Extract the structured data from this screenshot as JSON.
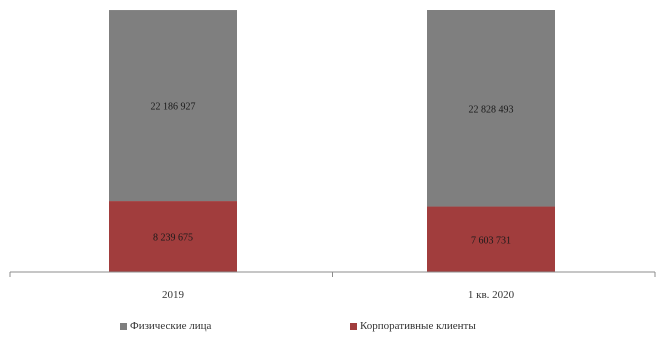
{
  "chart_data": {
    "type": "bar",
    "stacked": true,
    "categories": [
      "2019",
      "1 кв. 2020"
    ],
    "series": [
      {
        "name": "Корпоративные клиенты",
        "values": [
          8239675,
          7603731
        ],
        "labels": [
          "8 239 675",
          "7 603 731"
        ],
        "color": "#a13d3d"
      },
      {
        "name": "Физические лица",
        "values": [
          22186927,
          22828493
        ],
        "labels": [
          "22 186 927",
          "22 828 493"
        ],
        "color": "#7f7f7f"
      }
    ],
    "legend_position": "bottom",
    "grid": false
  },
  "legend": [
    {
      "label": "Физические лица",
      "color": "#7f7f7f"
    },
    {
      "label": "Корпоративные клиенты",
      "color": "#a13d3d"
    }
  ]
}
